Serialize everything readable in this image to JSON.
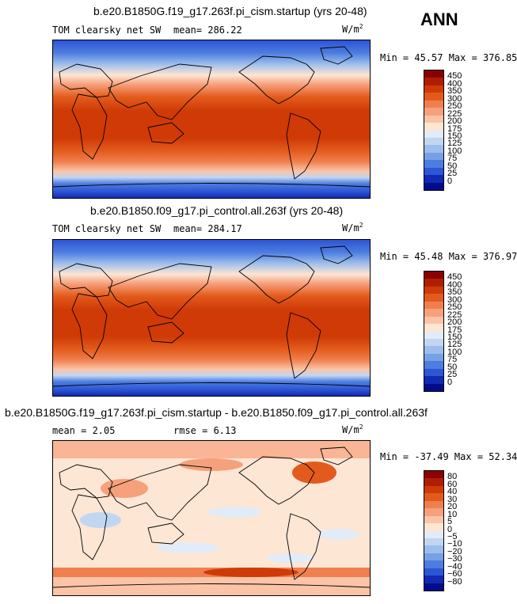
{
  "season": "ANN",
  "panels": [
    {
      "title": "b.e20.B1850G.f19_g17.263f.pi_cism.startup (yrs 20-48)",
      "left_label": "TOM clearsky net SW",
      "center_label": "mean= 286.22",
      "units": "W/m",
      "units_sup": "2",
      "minmax": "Min =  45.57 Max = 376.85",
      "colorbar": {
        "labels": [
          "450",
          "400",
          "350",
          "300",
          "250",
          "225",
          "200",
          "175",
          "150",
          "125",
          "100",
          "75",
          "50",
          "25",
          "0"
        ],
        "colors": [
          "#8b0000",
          "#b01e02",
          "#cf3a06",
          "#e35b1c",
          "#f07f4f",
          "#f6a07c",
          "#fbc4a6",
          "#fde6d4",
          "#e2ebf8",
          "#c1d6f2",
          "#9dbdec",
          "#76a1e5",
          "#4d7de0",
          "#2d55d4",
          "#1229b3",
          "#000c8a"
        ]
      }
    },
    {
      "title": "b.e20.B1850.f09_g17.pi_control.all.263f (yrs 20-48)",
      "left_label": "TOM clearsky net SW",
      "center_label": "mean= 284.17",
      "units": "W/m",
      "units_sup": "2",
      "minmax": "Min =  45.48 Max = 376.97",
      "colorbar": {
        "labels": [
          "450",
          "400",
          "350",
          "300",
          "250",
          "225",
          "200",
          "175",
          "150",
          "125",
          "100",
          "75",
          "50",
          "25",
          "0"
        ],
        "colors": [
          "#8b0000",
          "#b01e02",
          "#cf3a06",
          "#e35b1c",
          "#f07f4f",
          "#f6a07c",
          "#fbc4a6",
          "#fde6d4",
          "#e2ebf8",
          "#c1d6f2",
          "#9dbdec",
          "#76a1e5",
          "#4d7de0",
          "#2d55d4",
          "#1229b3",
          "#000c8a"
        ]
      }
    },
    {
      "title": "b.e20.B1850G.f19_g17.263f.pi_cism.startup - b.e20.B1850.f09_g17.pi_control.all.263f",
      "left_label": "mean =   2.05",
      "center_label": "rmse =   6.13",
      "units": "W/m",
      "units_sup": "2",
      "minmax": "Min = -37.49 Max =  52.34",
      "colorbar": {
        "labels": [
          "80",
          "60",
          "40",
          "30",
          "20",
          "10",
          "5",
          "0",
          "−5",
          "−10",
          "−20",
          "−30",
          "−40",
          "−60",
          "−80"
        ],
        "colors": [
          "#8b0000",
          "#b01e02",
          "#cf3a06",
          "#e35b1c",
          "#f07f4f",
          "#f6a07c",
          "#fbc4a6",
          "#fde6d4",
          "#e2ebf8",
          "#c1d6f2",
          "#9dbdec",
          "#76a1e5",
          "#4d7de0",
          "#2d55d4",
          "#1229b3",
          "#000c8a"
        ]
      }
    }
  ]
}
